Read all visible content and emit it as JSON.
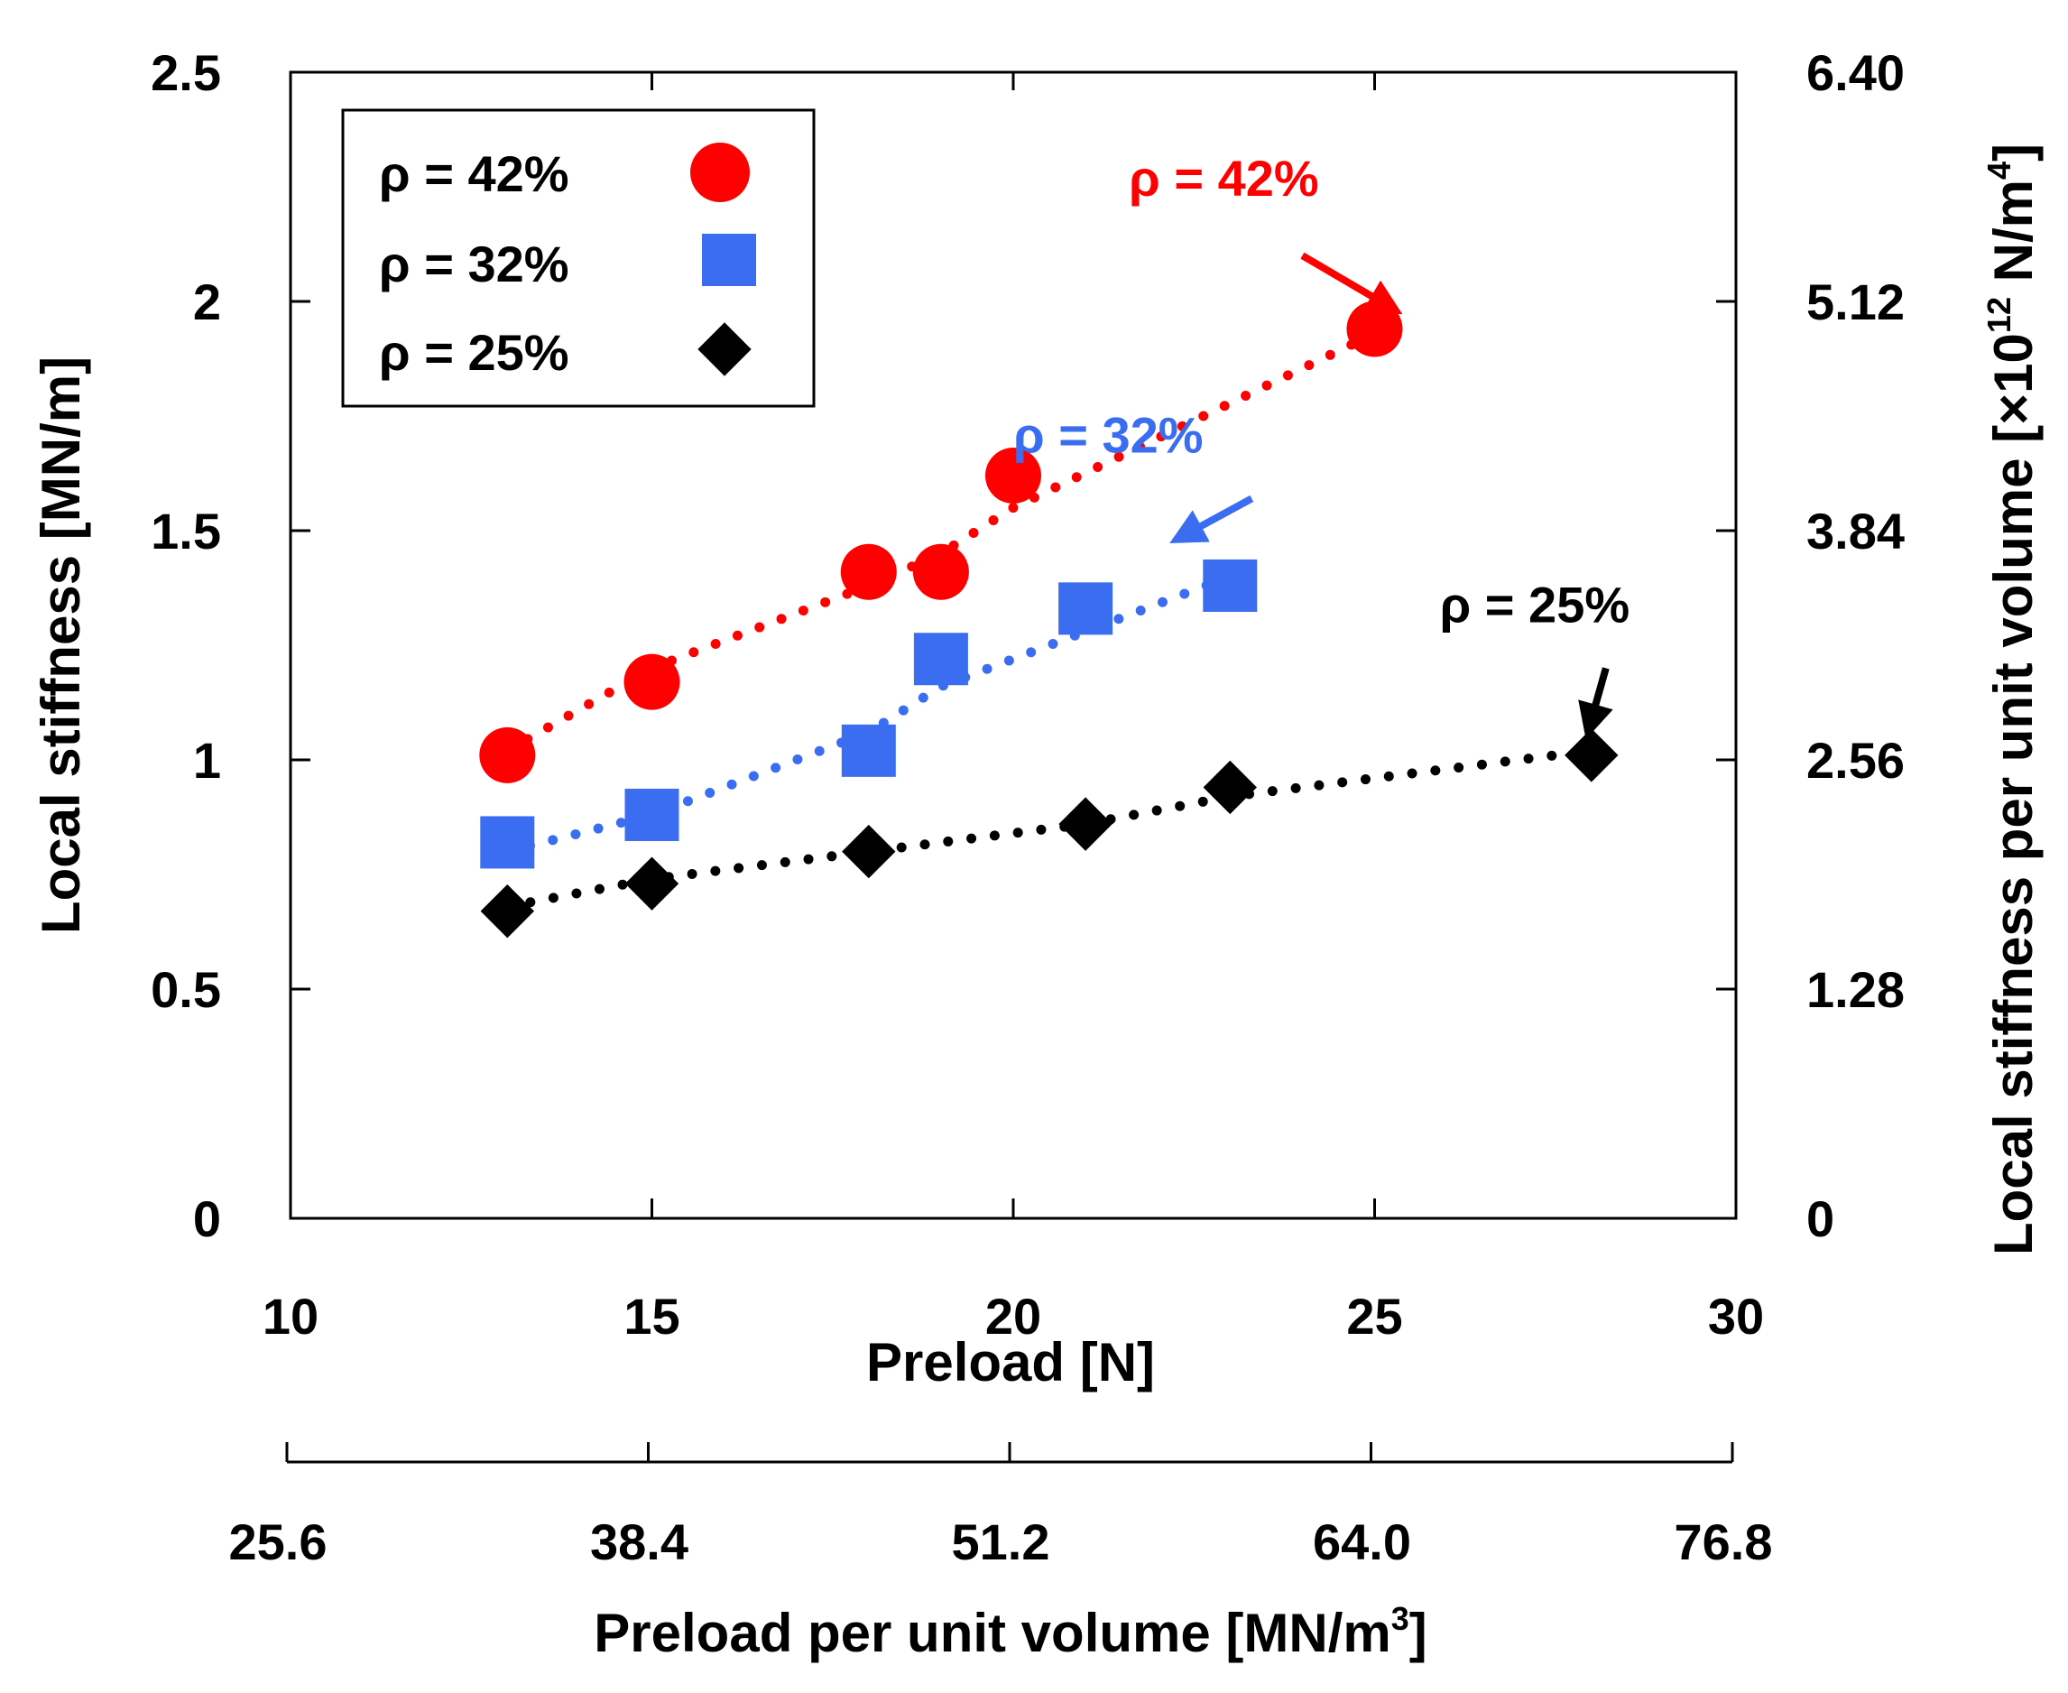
{
  "chart_data": {
    "type": "scatter",
    "x_label": "Preload [N]",
    "x_label_secondary": "Preload per unit volume [MN/m",
    "x_label_secondary_sup": "3",
    "x_label_secondary_end": "]",
    "y_label": "Local stiffness [MN/m]",
    "y_label_secondary": "Local stiffness per unit volume [×10",
    "y_label_secondary_sup1": "12",
    "y_label_secondary_mid": " N/m",
    "y_label_secondary_sup2": "4",
    "y_label_secondary_end": "]",
    "xlim": [
      10,
      30
    ],
    "ylim": [
      0,
      2.5
    ],
    "x_ticks": [
      10,
      15,
      20,
      25,
      30
    ],
    "x_tick_labels": [
      "10",
      "15",
      "20",
      "25",
      "30"
    ],
    "y_ticks": [
      0,
      0.5,
      1,
      1.5,
      2,
      2.5
    ],
    "y_tick_labels": [
      "0",
      "0.5",
      "1",
      "1.5",
      "2",
      "2.5"
    ],
    "x2_tick_labels": [
      "25.6",
      "38.4",
      "51.2",
      "64.0",
      "76.8"
    ],
    "y2_tick_labels": [
      "0",
      "1.28",
      "2.56",
      "3.84",
      "5.12",
      "6.40"
    ],
    "series": [
      {
        "name": "ρ = 42%",
        "color": "#ff0000",
        "marker": "circle",
        "x": [
          13,
          15,
          18,
          19,
          20,
          25
        ],
        "y": [
          1.01,
          1.17,
          1.41,
          1.41,
          1.62,
          1.94
        ],
        "trend": [
          [
            13,
            1.02
          ],
          [
            15,
            1.2
          ],
          [
            18,
            1.38
          ],
          [
            19,
            1.45
          ],
          [
            20,
            1.55
          ],
          [
            25,
            1.93
          ]
        ],
        "annotation": "ρ = 42%",
        "annotation_pos": [
          21.6,
          2.23
        ],
        "arrow_from": [
          24.0,
          2.1
        ],
        "arrow_to": [
          25.3,
          1.98
        ]
      },
      {
        "name": "ρ = 32%",
        "color": "#3a6df0",
        "marker": "square",
        "x": [
          13,
          15,
          18,
          19,
          21,
          23
        ],
        "y": [
          0.82,
          0.88,
          1.02,
          1.22,
          1.33,
          1.38
        ],
        "trend": [
          [
            13,
            0.8
          ],
          [
            15,
            0.88
          ],
          [
            18,
            1.06
          ],
          [
            19,
            1.16
          ],
          [
            21,
            1.28
          ],
          [
            23,
            1.4
          ]
        ],
        "annotation": "ρ = 32%",
        "annotation_pos": [
          20.0,
          1.67
        ],
        "arrow_from": [
          23.3,
          1.57
        ],
        "arrow_to": [
          22.25,
          1.48
        ]
      },
      {
        "name": "ρ = 25%",
        "color": "#000000",
        "marker": "diamond",
        "x": [
          13,
          15,
          18,
          21,
          23,
          28
        ],
        "y": [
          0.67,
          0.73,
          0.8,
          0.86,
          0.94,
          1.01
        ],
        "trend": [
          [
            13,
            0.68
          ],
          [
            15,
            0.74
          ],
          [
            18,
            0.8
          ],
          [
            21,
            0.86
          ],
          [
            23,
            0.92
          ],
          [
            28,
            1.02
          ]
        ],
        "annotation": "ρ = 25%",
        "annotation_pos": [
          25.9,
          1.3
        ],
        "arrow_from": [
          28.2,
          1.2
        ],
        "arrow_to": [
          27.95,
          1.06
        ]
      }
    ],
    "legend_position": "top-left"
  }
}
